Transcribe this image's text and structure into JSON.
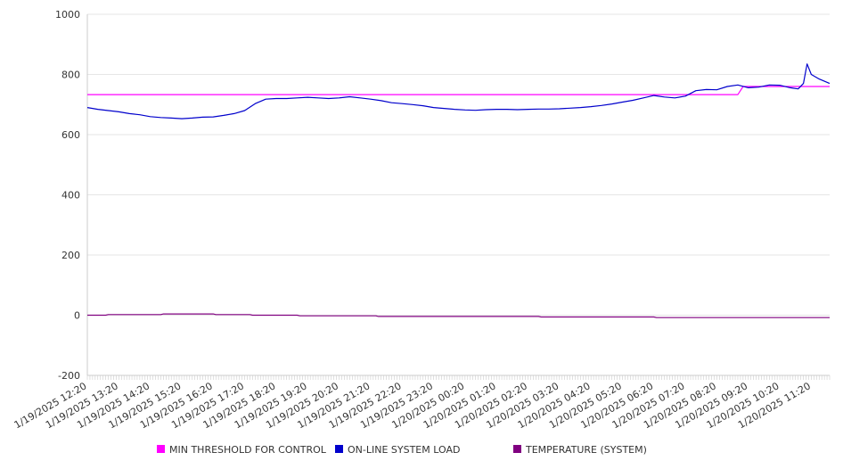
{
  "chart_data": {
    "type": "line",
    "title": "",
    "xlabel": "",
    "ylabel": "",
    "ylim": [
      -200,
      1000
    ],
    "yticks": [
      1000,
      800,
      600,
      400,
      200,
      0,
      -200
    ],
    "grid": "horizontal",
    "legend_position": "bottom",
    "x_tick_labels": [
      "1/19/2025 12:20",
      "1/19/2025 13:20",
      "1/19/2025 14:20",
      "1/19/2025 15:20",
      "1/19/2025 16:20",
      "1/19/2025 17:20",
      "1/19/2025 18:20",
      "1/19/2025 19:20",
      "1/19/2025 20:20",
      "1/19/2025 21:20",
      "1/19/2025 22:20",
      "1/19/2025 23:20",
      "1/20/2025 00:20",
      "1/20/2025 01:20",
      "1/20/2025 02:20",
      "1/20/2025 03:20",
      "1/20/2025 04:20",
      "1/20/2025 05:20",
      "1/20/2025 06:20",
      "1/20/2025 07:20",
      "1/20/2025 08:20",
      "1/20/2025 09:20",
      "1/20/2025 10:20",
      "1/20/2025 11:20"
    ],
    "x_last_label": "1/20/2025 11:20",
    "series": [
      {
        "name": "MIN THRESHOLD FOR CONTROL",
        "color": "#ff00ff",
        "points": [
          [
            "1/19/2025 12:20",
            733
          ],
          [
            "1/20/2025 09:00",
            733
          ],
          [
            "1/20/2025 09:10",
            760
          ],
          [
            "1/20/2025 11:55",
            760
          ]
        ]
      },
      {
        "name": "ON-LINE SYSTEM LOAD",
        "color": "#0000cc",
        "points": [
          [
            "1/19/2025 12:20",
            690
          ],
          [
            "1/19/2025 12:40",
            684
          ],
          [
            "1/19/2025 13:00",
            680
          ],
          [
            "1/19/2025 13:20",
            676
          ],
          [
            "1/19/2025 13:40",
            670
          ],
          [
            "1/19/2025 14:00",
            666
          ],
          [
            "1/19/2025 14:20",
            660
          ],
          [
            "1/19/2025 14:40",
            657
          ],
          [
            "1/19/2025 15:00",
            655
          ],
          [
            "1/19/2025 15:20",
            653
          ],
          [
            "1/19/2025 15:40",
            655
          ],
          [
            "1/19/2025 16:00",
            658
          ],
          [
            "1/19/2025 16:20",
            659
          ],
          [
            "1/19/2025 16:40",
            664
          ],
          [
            "1/19/2025 17:00",
            670
          ],
          [
            "1/19/2025 17:20",
            680
          ],
          [
            "1/19/2025 17:40",
            703
          ],
          [
            "1/19/2025 18:00",
            718
          ],
          [
            "1/19/2025 18:20",
            720
          ],
          [
            "1/19/2025 18:40",
            720
          ],
          [
            "1/19/2025 19:00",
            722
          ],
          [
            "1/19/2025 19:20",
            724
          ],
          [
            "1/19/2025 19:40",
            722
          ],
          [
            "1/19/2025 20:00",
            720
          ],
          [
            "1/19/2025 20:20",
            722
          ],
          [
            "1/19/2025 20:40",
            726
          ],
          [
            "1/19/2025 21:00",
            722
          ],
          [
            "1/19/2025 21:20",
            718
          ],
          [
            "1/19/2025 21:40",
            713
          ],
          [
            "1/19/2025 22:00",
            706
          ],
          [
            "1/19/2025 22:20",
            703
          ],
          [
            "1/19/2025 22:40",
            700
          ],
          [
            "1/19/2025 23:00",
            696
          ],
          [
            "1/19/2025 23:20",
            690
          ],
          [
            "1/19/2025 23:40",
            687
          ],
          [
            "1/20/2025 00:00",
            684
          ],
          [
            "1/20/2025 00:20",
            682
          ],
          [
            "1/20/2025 00:40",
            681
          ],
          [
            "1/20/2025 01:00",
            683
          ],
          [
            "1/20/2025 01:20",
            684
          ],
          [
            "1/20/2025 01:40",
            684
          ],
          [
            "1/20/2025 02:00",
            683
          ],
          [
            "1/20/2025 02:20",
            684
          ],
          [
            "1/20/2025 02:40",
            685
          ],
          [
            "1/20/2025 03:00",
            685
          ],
          [
            "1/20/2025 03:20",
            686
          ],
          [
            "1/20/2025 03:40",
            688
          ],
          [
            "1/20/2025 04:00",
            690
          ],
          [
            "1/20/2025 04:20",
            693
          ],
          [
            "1/20/2025 04:40",
            697
          ],
          [
            "1/20/2025 05:00",
            702
          ],
          [
            "1/20/2025 05:20",
            708
          ],
          [
            "1/20/2025 05:40",
            714
          ],
          [
            "1/20/2025 06:00",
            722
          ],
          [
            "1/20/2025 06:20",
            730
          ],
          [
            "1/20/2025 06:40",
            725
          ],
          [
            "1/20/2025 07:00",
            722
          ],
          [
            "1/20/2025 07:20",
            728
          ],
          [
            "1/20/2025 07:40",
            746
          ],
          [
            "1/20/2025 08:00",
            750
          ],
          [
            "1/20/2025 08:20",
            749
          ],
          [
            "1/20/2025 08:40",
            760
          ],
          [
            "1/20/2025 09:00",
            765
          ],
          [
            "1/20/2025 09:20",
            756
          ],
          [
            "1/20/2025 09:40",
            758
          ],
          [
            "1/20/2025 10:00",
            765
          ],
          [
            "1/20/2025 10:20",
            764
          ],
          [
            "1/20/2025 10:40",
            756
          ],
          [
            "1/20/2025 10:55",
            752
          ],
          [
            "1/20/2025 11:05",
            770
          ],
          [
            "1/20/2025 11:12",
            835
          ],
          [
            "1/20/2025 11:20",
            800
          ],
          [
            "1/20/2025 11:35",
            785
          ],
          [
            "1/20/2025 11:55",
            770
          ]
        ]
      },
      {
        "name": "TEMPERATURE (SYSTEM)",
        "color": "#800080",
        "points": [
          [
            "1/19/2025 12:20",
            0
          ],
          [
            "1/19/2025 12:55",
            0
          ],
          [
            "1/19/2025 13:00",
            2
          ],
          [
            "1/19/2025 14:40",
            2
          ],
          [
            "1/19/2025 14:45",
            4
          ],
          [
            "1/19/2025 16:20",
            4
          ],
          [
            "1/19/2025 16:25",
            2
          ],
          [
            "1/19/2025 17:30",
            2
          ],
          [
            "1/19/2025 17:35",
            0
          ],
          [
            "1/19/2025 19:00",
            0
          ],
          [
            "1/19/2025 19:05",
            -2
          ],
          [
            "1/19/2025 21:30",
            -2
          ],
          [
            "1/19/2025 21:35",
            -4
          ],
          [
            "1/20/2025 02:40",
            -4
          ],
          [
            "1/20/2025 02:45",
            -6
          ],
          [
            "1/20/2025 06:20",
            -6
          ],
          [
            "1/20/2025 06:25",
            -8
          ],
          [
            "1/20/2025 11:55",
            -8
          ]
        ]
      }
    ]
  }
}
